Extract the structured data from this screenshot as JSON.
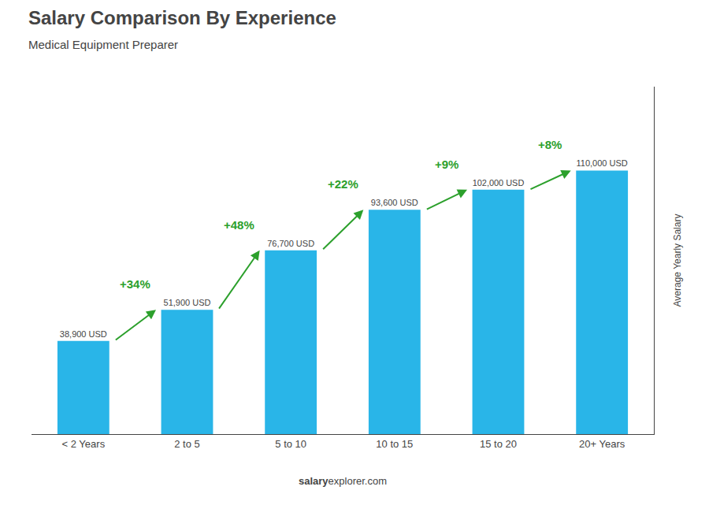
{
  "chart_data": {
    "type": "bar",
    "title": "Salary Comparison By Experience",
    "subtitle": "Medical Equipment Preparer",
    "categories": [
      "< 2 Years",
      "2 to 5",
      "5 to 10",
      "10 to 15",
      "15 to 20",
      "20+ Years"
    ],
    "values": [
      38900,
      51900,
      76700,
      93600,
      102000,
      110000
    ],
    "value_labels": [
      "38,900 USD",
      "51,900 USD",
      "76,700 USD",
      "93,600 USD",
      "102,000 USD",
      "110,000 USD"
    ],
    "data_labels": true,
    "color": "#29b5e8",
    "ylabel": "Average Yearly Salary",
    "ylim": [
      0,
      145000
    ],
    "tick_labels": "x",
    "grid": false,
    "annotations": [
      "+34%",
      "+48%",
      "+22%",
      "+9%",
      "+8%"
    ],
    "footer": [
      "salary",
      "explorer.com"
    ]
  }
}
